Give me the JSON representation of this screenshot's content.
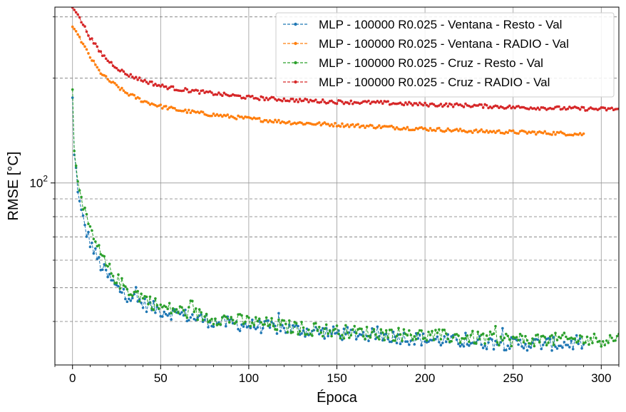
{
  "chart_data": {
    "type": "line",
    "xlabel": "Época",
    "ylabel": "RMSE [°C]",
    "xlim": [
      -10,
      310
    ],
    "ylim": [
      30,
      320
    ],
    "yscale": "log",
    "x_ticks": [
      0,
      50,
      100,
      150,
      200,
      250,
      300
    ],
    "y_tick_labels": [
      {
        "value": 100,
        "base": "10",
        "exp": "2"
      }
    ],
    "grid": true,
    "legend_position": "top-right",
    "series": [
      {
        "name": "MLP - 100000 R0.025 - Ventana - Resto - Val",
        "color": "#1f77b4",
        "x_end": 290,
        "points": [
          [
            0,
            175
          ],
          [
            1,
            120
          ],
          [
            2,
            110
          ],
          [
            3,
            95
          ],
          [
            5,
            82
          ],
          [
            8,
            72
          ],
          [
            12,
            64
          ],
          [
            16,
            58
          ],
          [
            20,
            54
          ],
          [
            25,
            50
          ],
          [
            30,
            48
          ],
          [
            40,
            45
          ],
          [
            50,
            43
          ],
          [
            60,
            42
          ],
          [
            70,
            41
          ],
          [
            80,
            40
          ],
          [
            90,
            39.5
          ],
          [
            100,
            39
          ],
          [
            125,
            38
          ],
          [
            150,
            37
          ],
          [
            175,
            36.5
          ],
          [
            200,
            35.5
          ],
          [
            225,
            35
          ],
          [
            250,
            34.5
          ],
          [
            275,
            34.5
          ],
          [
            290,
            34.5
          ]
        ]
      },
      {
        "name": "MLP - 100000 R0.025 - Ventana - RADIO - Val",
        "color": "#ff7f0e",
        "x_end": 290,
        "points": [
          [
            0,
            280
          ],
          [
            3,
            268
          ],
          [
            6,
            250
          ],
          [
            10,
            230
          ],
          [
            15,
            210
          ],
          [
            20,
            198
          ],
          [
            25,
            190
          ],
          [
            30,
            182
          ],
          [
            40,
            172
          ],
          [
            50,
            166
          ],
          [
            60,
            162
          ],
          [
            75,
            158
          ],
          [
            100,
            153
          ],
          [
            125,
            149
          ],
          [
            150,
            147
          ],
          [
            175,
            145
          ],
          [
            200,
            143
          ],
          [
            225,
            141
          ],
          [
            250,
            140
          ],
          [
            275,
            139
          ],
          [
            290,
            138
          ]
        ]
      },
      {
        "name": "MLP - 100000 R0.025 - Cruz - Resto - Val",
        "color": "#2ca02c",
        "x_end": 310,
        "points": [
          [
            0,
            185
          ],
          [
            1,
            125
          ],
          [
            2,
            112
          ],
          [
            3,
            100
          ],
          [
            5,
            88
          ],
          [
            8,
            78
          ],
          [
            12,
            69
          ],
          [
            16,
            62
          ],
          [
            20,
            57
          ],
          [
            25,
            53
          ],
          [
            30,
            50
          ],
          [
            40,
            47
          ],
          [
            50,
            44
          ],
          [
            60,
            43
          ],
          [
            70,
            42
          ],
          [
            80,
            41
          ],
          [
            90,
            40.5
          ],
          [
            100,
            40
          ],
          [
            125,
            38.5
          ],
          [
            150,
            37.5
          ],
          [
            175,
            37
          ],
          [
            200,
            36.5
          ],
          [
            225,
            36
          ],
          [
            250,
            35.5
          ],
          [
            275,
            35.5
          ],
          [
            300,
            35.5
          ],
          [
            310,
            35.8
          ]
        ]
      },
      {
        "name": "MLP - 100000 R0.025 - Cruz - RADIO - Val",
        "color": "#d62728",
        "x_end": 310,
        "points": [
          [
            0,
            320
          ],
          [
            3,
            305
          ],
          [
            6,
            285
          ],
          [
            10,
            262
          ],
          [
            15,
            240
          ],
          [
            20,
            225
          ],
          [
            25,
            215
          ],
          [
            30,
            206
          ],
          [
            40,
            197
          ],
          [
            50,
            190
          ],
          [
            60,
            186
          ],
          [
            75,
            182
          ],
          [
            100,
            176
          ],
          [
            125,
            173
          ],
          [
            150,
            171
          ],
          [
            175,
            170
          ],
          [
            200,
            168
          ],
          [
            225,
            167
          ],
          [
            250,
            165
          ],
          [
            275,
            164
          ],
          [
            300,
            163
          ],
          [
            310,
            163
          ]
        ]
      }
    ]
  }
}
